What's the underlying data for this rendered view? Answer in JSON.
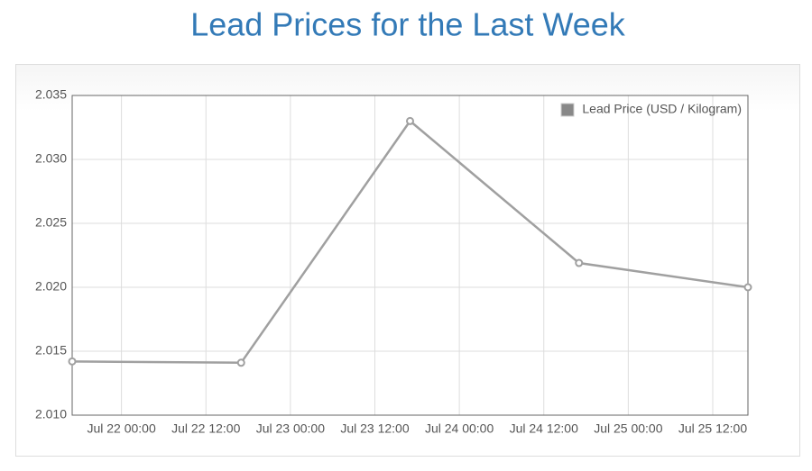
{
  "chart_data": {
    "type": "line",
    "title": "Lead Prices for the Last Week",
    "x": [
      "Jul 21 17:00",
      "Jul 22 17:00",
      "Jul 23 17:00",
      "Jul 24 17:00",
      "Jul 25 17:00"
    ],
    "series": [
      {
        "name": "Lead Price (USD / Kilogram)",
        "color": "#a0a0a0",
        "values": [
          2.0142,
          2.0141,
          2.033,
          2.0219,
          2.02
        ]
      }
    ],
    "xlim": [
      "Jul 21 17:00",
      "Jul 25 17:00"
    ],
    "xticks": [
      "Jul 22 00:00",
      "Jul 22 12:00",
      "Jul 23 00:00",
      "Jul 23 12:00",
      "Jul 24 00:00",
      "Jul 24 12:00",
      "Jul 25 00:00",
      "Jul 25 12:00"
    ],
    "ylim": [
      2.01,
      2.035
    ],
    "yticks": [
      {
        "value": 2.01,
        "label": "2.010"
      },
      2.015,
      {
        "value": 2.02,
        "label": "2.020"
      },
      2.025,
      {
        "value": 2.03,
        "label": "2.030"
      },
      2.035
    ],
    "grid": true,
    "legend": "top-right"
  }
}
